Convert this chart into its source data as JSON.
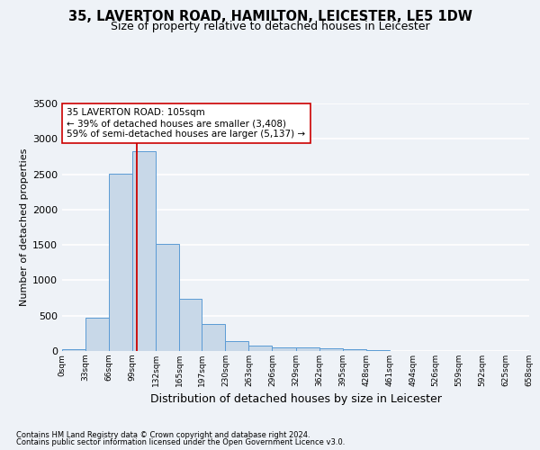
{
  "title_line1": "35, LAVERTON ROAD, HAMILTON, LEICESTER, LE5 1DW",
  "title_line2": "Size of property relative to detached houses in Leicester",
  "xlabel": "Distribution of detached houses by size in Leicester",
  "ylabel": "Number of detached properties",
  "footnote1": "Contains HM Land Registry data © Crown copyright and database right 2024.",
  "footnote2": "Contains public sector information licensed under the Open Government Licence v3.0.",
  "bar_edges": [
    0,
    33,
    66,
    99,
    132,
    165,
    197,
    230,
    263,
    296,
    329,
    362,
    395,
    428,
    461,
    494,
    526,
    559,
    592,
    625,
    658
  ],
  "bar_heights": [
    30,
    470,
    2510,
    2820,
    1510,
    740,
    385,
    145,
    75,
    45,
    45,
    40,
    25,
    15,
    0,
    0,
    0,
    0,
    0,
    0
  ],
  "bar_color": "#c8d8e8",
  "bar_edge_color": "#5b9bd5",
  "property_size": 105,
  "vline_color": "#cc0000",
  "annotation_text": "35 LAVERTON ROAD: 105sqm\n← 39% of detached houses are smaller (3,408)\n59% of semi-detached houses are larger (5,137) →",
  "annotation_box_color": "#ffffff",
  "annotation_box_edge": "#cc0000",
  "ylim": [
    0,
    3500
  ],
  "yticks": [
    0,
    500,
    1000,
    1500,
    2000,
    2500,
    3000,
    3500
  ],
  "xtick_labels": [
    "0sqm",
    "33sqm",
    "66sqm",
    "99sqm",
    "132sqm",
    "165sqm",
    "197sqm",
    "230sqm",
    "263sqm",
    "296sqm",
    "329sqm",
    "362sqm",
    "395sqm",
    "428sqm",
    "461sqm",
    "494sqm",
    "526sqm",
    "559sqm",
    "592sqm",
    "625sqm",
    "658sqm"
  ],
  "bg_color": "#eef2f7",
  "grid_color": "#ffffff",
  "title_fontsize": 10.5,
  "subtitle_fontsize": 9,
  "annotation_fontsize": 7.5,
  "ylabel_fontsize": 8,
  "xlabel_fontsize": 9,
  "footnote_fontsize": 6,
  "ytick_fontsize": 8,
  "xtick_fontsize": 6.5
}
